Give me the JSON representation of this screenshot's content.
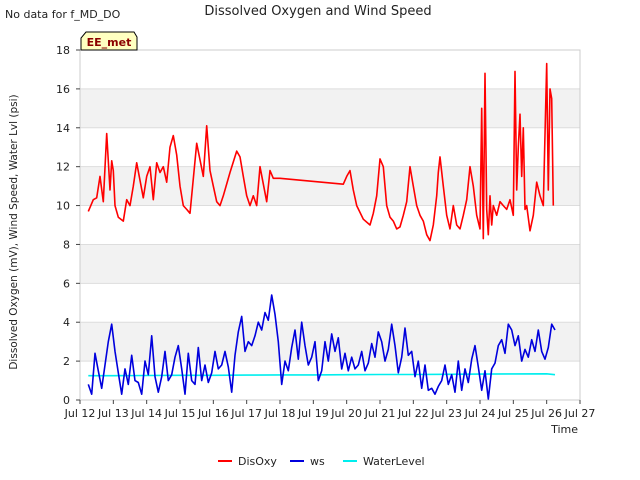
{
  "page": {
    "note": "No data for f_MD_DO",
    "badge": "EE_met"
  },
  "chart_data": {
    "type": "line",
    "title": "Dissolved Oxygen and Wind Speed",
    "xlabel": "Time",
    "ylabel": "Dissolved Oxygen (mV), Wind Speed, Water Lvl (psi)",
    "xlim": [
      12,
      27
    ],
    "ylim": [
      0,
      18
    ],
    "x_ticks": [
      12,
      13,
      14,
      15,
      16,
      17,
      18,
      19,
      20,
      21,
      22,
      23,
      24,
      25,
      26,
      27
    ],
    "x_tick_labels": [
      "Jul 12",
      "Jul 13",
      "Jul 14",
      "Jul 15",
      "Jul 16",
      "Jul 17",
      "Jul 18",
      "Jul 19",
      "Jul 20",
      "Jul 21",
      "Jul 22",
      "Jul 23",
      "Jul 24",
      "Jul 25",
      "Jul 26",
      "Jul 27"
    ],
    "y_ticks": [
      0,
      2,
      4,
      6,
      8,
      10,
      12,
      14,
      16,
      18
    ],
    "grid": true,
    "legend": "bottom-center",
    "series": [
      {
        "name": "DisOxy",
        "color": "#ff0000",
        "x": [
          12.25,
          12.4,
          12.5,
          12.6,
          12.7,
          12.8,
          12.9,
          12.95,
          13.0,
          13.05,
          13.15,
          13.3,
          13.4,
          13.5,
          13.6,
          13.7,
          13.8,
          13.9,
          14.0,
          14.1,
          14.2,
          14.3,
          14.4,
          14.5,
          14.6,
          14.7,
          14.8,
          14.9,
          15.0,
          15.1,
          15.2,
          15.3,
          15.5,
          15.7,
          15.8,
          15.9,
          16.0,
          16.1,
          16.2,
          16.3,
          16.5,
          16.7,
          16.8,
          16.9,
          17.0,
          17.1,
          17.2,
          17.3,
          17.4,
          17.6,
          17.7,
          17.8,
          17.9,
          18.0,
          19.9,
          20.0,
          20.1,
          20.2,
          20.3,
          20.5,
          20.7,
          20.8,
          20.9,
          21.0,
          21.1,
          21.2,
          21.3,
          21.4,
          21.5,
          21.6,
          21.7,
          21.8,
          21.9,
          22.0,
          22.1,
          22.2,
          22.3,
          22.4,
          22.5,
          22.6,
          22.7,
          22.75,
          22.8,
          22.9,
          23.0,
          23.1,
          23.2,
          23.3,
          23.4,
          23.5,
          23.6,
          23.7,
          23.8,
          23.9,
          24.0,
          24.05,
          24.1,
          24.15,
          24.2,
          24.25,
          24.3,
          24.35,
          24.4,
          24.5,
          24.6,
          24.7,
          24.8,
          24.9,
          25.0,
          25.05,
          25.1,
          25.15,
          25.2,
          25.25,
          25.3,
          25.35,
          25.4,
          25.5,
          25.6,
          25.7,
          25.8,
          25.9,
          26.0,
          26.05,
          26.1,
          26.15,
          26.2
        ],
        "values": [
          9.7,
          10.3,
          10.4,
          11.5,
          10.2,
          13.7,
          10.8,
          12.3,
          11.8,
          10.0,
          9.4,
          9.2,
          10.3,
          10.0,
          11.0,
          12.2,
          11.3,
          10.4,
          11.5,
          12.0,
          10.3,
          12.2,
          11.7,
          12.0,
          11.2,
          13.0,
          13.6,
          12.6,
          11.0,
          10.0,
          9.8,
          9.6,
          13.2,
          11.5,
          14.1,
          11.8,
          11.0,
          10.2,
          10.0,
          10.5,
          11.7,
          12.8,
          12.5,
          11.5,
          10.5,
          10.0,
          10.5,
          10.0,
          12.0,
          10.2,
          11.8,
          11.4,
          11.4,
          11.4,
          11.1,
          11.5,
          11.8,
          10.8,
          10.0,
          9.3,
          9.0,
          9.6,
          10.5,
          12.4,
          12.0,
          10.0,
          9.4,
          9.2,
          8.8,
          8.9,
          9.5,
          10.2,
          12.0,
          11.0,
          10.0,
          9.5,
          9.2,
          8.5,
          8.2,
          9.0,
          10.5,
          11.7,
          12.5,
          11.0,
          9.5,
          8.8,
          10.0,
          9.0,
          8.8,
          9.5,
          10.3,
          12.0,
          11.0,
          9.5,
          8.8,
          15.0,
          8.3,
          16.8,
          9.8,
          8.5,
          10.5,
          9.0,
          10.0,
          9.5,
          10.2,
          10.0,
          9.8,
          10.3,
          9.5,
          16.9,
          10.8,
          13.0,
          14.7,
          11.5,
          14.0,
          9.8,
          10.0,
          8.7,
          9.5,
          11.2,
          10.5,
          10.0,
          17.3,
          10.8,
          16.0,
          15.5,
          10.0
        ]
      },
      {
        "name": "ws",
        "color": "#0000dd",
        "x": [
          12.25,
          12.35,
          12.45,
          12.55,
          12.65,
          12.75,
          12.85,
          12.95,
          13.05,
          13.15,
          13.25,
          13.35,
          13.45,
          13.55,
          13.65,
          13.75,
          13.85,
          13.95,
          14.05,
          14.15,
          14.25,
          14.35,
          14.45,
          14.55,
          14.65,
          14.75,
          14.85,
          14.95,
          15.05,
          15.15,
          15.25,
          15.35,
          15.45,
          15.55,
          15.65,
          15.75,
          15.85,
          15.95,
          16.05,
          16.15,
          16.25,
          16.35,
          16.45,
          16.55,
          16.65,
          16.75,
          16.85,
          16.95,
          17.05,
          17.15,
          17.25,
          17.35,
          17.45,
          17.55,
          17.65,
          17.75,
          17.85,
          17.95,
          18.05,
          18.15,
          18.25,
          18.35,
          18.45,
          18.55,
          18.65,
          18.75,
          18.85,
          18.95,
          19.05,
          19.15,
          19.25,
          19.35,
          19.45,
          19.55,
          19.65,
          19.75,
          19.85,
          19.95,
          20.05,
          20.15,
          20.25,
          20.35,
          20.45,
          20.55,
          20.65,
          20.75,
          20.85,
          20.95,
          21.05,
          21.15,
          21.25,
          21.35,
          21.45,
          21.55,
          21.65,
          21.75,
          21.85,
          21.95,
          22.05,
          22.15,
          22.25,
          22.35,
          22.45,
          22.55,
          22.65,
          22.75,
          22.85,
          22.95,
          23.05,
          23.15,
          23.25,
          23.35,
          23.45,
          23.55,
          23.65,
          23.75,
          23.85,
          23.95,
          24.05,
          24.15,
          24.25,
          24.35,
          24.45,
          24.55,
          24.65,
          24.75,
          24.85,
          24.95,
          25.05,
          25.15,
          25.25,
          25.35,
          25.45,
          25.55,
          25.65,
          25.75,
          25.85,
          25.95,
          26.05,
          26.15,
          26.25
        ],
        "values": [
          0.8,
          0.3,
          2.4,
          1.5,
          0.6,
          1.8,
          3.0,
          3.9,
          2.5,
          1.4,
          0.3,
          1.6,
          0.8,
          2.3,
          1.0,
          0.9,
          0.3,
          2.0,
          1.3,
          3.3,
          1.2,
          0.4,
          1.2,
          2.5,
          1.0,
          1.3,
          2.2,
          2.8,
          1.6,
          0.3,
          2.4,
          1.0,
          0.8,
          2.7,
          1.0,
          1.8,
          0.9,
          1.4,
          2.5,
          1.6,
          1.8,
          2.5,
          1.7,
          0.4,
          2.3,
          3.5,
          4.3,
          2.5,
          3.0,
          2.8,
          3.3,
          4.0,
          3.6,
          4.5,
          4.1,
          5.4,
          4.4,
          3.0,
          0.8,
          2.0,
          1.5,
          2.7,
          3.6,
          2.1,
          4.0,
          2.8,
          1.8,
          2.2,
          3.0,
          1.0,
          1.5,
          3.0,
          2.0,
          3.4,
          2.5,
          3.2,
          1.6,
          2.4,
          1.5,
          2.2,
          1.6,
          1.8,
          2.5,
          1.5,
          1.9,
          2.9,
          2.2,
          3.5,
          3.0,
          2.0,
          2.6,
          3.9,
          2.8,
          1.4,
          2.2,
          3.7,
          2.3,
          2.5,
          1.2,
          2.0,
          0.6,
          1.8,
          0.5,
          0.6,
          0.3,
          0.7,
          1.0,
          1.8,
          0.8,
          1.3,
          0.4,
          2.0,
          0.5,
          1.6,
          0.9,
          2.1,
          2.8,
          1.7,
          0.5,
          1.5,
          0.05,
          1.6,
          1.9,
          2.8,
          3.1,
          2.4,
          3.9,
          3.6,
          2.8,
          3.3,
          2.0,
          2.6,
          2.2,
          3.1,
          2.5,
          3.6,
          2.5,
          2.1,
          2.7,
          3.9,
          3.6
        ]
      },
      {
        "name": "WaterLevel",
        "color": "#00eeee",
        "x": [
          12.25,
          13.0,
          14.0,
          15.0,
          16.0,
          17.0,
          18.0,
          19.0,
          20.0,
          21.0,
          22.0,
          23.0,
          24.0,
          25.0,
          26.0,
          26.25
        ],
        "values": [
          1.25,
          1.25,
          1.26,
          1.27,
          1.27,
          1.28,
          1.29,
          1.29,
          1.3,
          1.31,
          1.31,
          1.32,
          1.33,
          1.34,
          1.35,
          1.3
        ]
      }
    ]
  }
}
